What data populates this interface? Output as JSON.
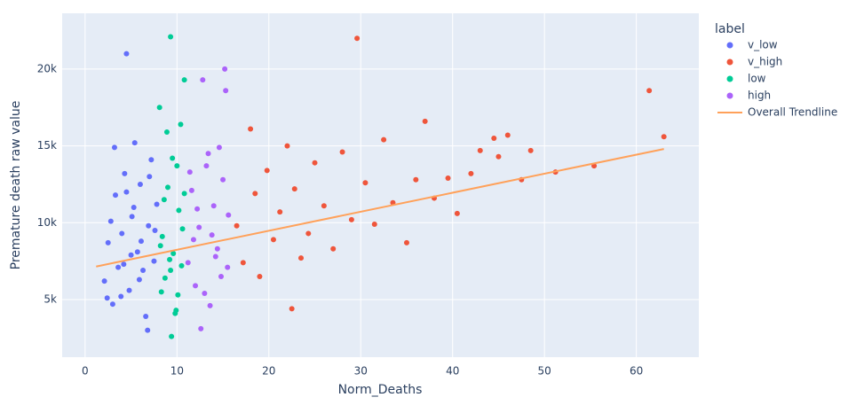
{
  "chart_data": {
    "type": "scatter",
    "x_label": "Norm_Deaths",
    "y_label": "Premature death raw value",
    "legend_title": "label",
    "legend": "right",
    "grid": true,
    "xlim": [
      -2.5,
      66.8
    ],
    "xticks": [
      0,
      10,
      20,
      30,
      40,
      50,
      60
    ],
    "ylim": [
      1250,
      23630
    ],
    "yticks": [
      {
        "value": 5000,
        "label": "5k"
      },
      {
        "value": 10000,
        "label": "10k"
      },
      {
        "value": 15000,
        "label": "15k"
      },
      {
        "value": 20000,
        "label": "20k"
      }
    ],
    "series": [
      {
        "name": "v_low",
        "color": "#636efa",
        "mode": "markers",
        "x": [
          2.1,
          2.5,
          3.0,
          3.3,
          3.6,
          4.0,
          4.3,
          4.5,
          4.8,
          5.1,
          5.4,
          5.7,
          6.0,
          6.3,
          6.6,
          6.9,
          7.2,
          7.5,
          7.8,
          2.8,
          3.9,
          5.0,
          6.1,
          7.0,
          4.5,
          3.2,
          5.9,
          6.8,
          2.4,
          7.6,
          4.2,
          5.3
        ],
        "values": [
          6200,
          8700,
          4700,
          11800,
          7100,
          9300,
          13200,
          21000,
          5600,
          10400,
          15200,
          8100,
          12500,
          6900,
          3900,
          9800,
          14100,
          7500,
          11200,
          10100,
          5200,
          7900,
          8800,
          13000,
          12000,
          14900,
          6300,
          3000,
          5100,
          9500,
          7300,
          11000
        ]
      },
      {
        "name": "v_high",
        "color": "#EF553B",
        "mode": "markers",
        "x": [
          16.5,
          17.2,
          18.0,
          18.5,
          19.0,
          19.8,
          20.5,
          21.2,
          22.0,
          22.8,
          23.5,
          24.3,
          25.0,
          26.0,
          27.0,
          28.0,
          29.0,
          29.6,
          30.5,
          31.5,
          32.5,
          33.5,
          35.0,
          36.0,
          37.0,
          38.0,
          39.5,
          40.5,
          42.0,
          43.0,
          44.5,
          45.0,
          46.0,
          47.5,
          48.5,
          51.2,
          55.4,
          61.4,
          63.0,
          22.5
        ],
        "values": [
          9800,
          7400,
          16100,
          11900,
          6500,
          13400,
          8900,
          10700,
          15000,
          12200,
          7700,
          9300,
          13900,
          11100,
          8300,
          14600,
          10200,
          22000,
          12600,
          9900,
          15400,
          11300,
          8700,
          12800,
          16600,
          11600,
          12900,
          10600,
          13200,
          14700,
          15500,
          14300,
          15700,
          12800,
          14700,
          13300,
          13700,
          18600,
          15600,
          4400
        ]
      },
      {
        "name": "low",
        "color": "#00cc96",
        "mode": "markers",
        "x": [
          8.1,
          8.4,
          8.7,
          9.0,
          9.3,
          9.6,
          9.9,
          10.2,
          10.5,
          10.8,
          8.3,
          8.9,
          9.4,
          10.0,
          10.6,
          8.6,
          9.2,
          9.8,
          10.4,
          9.3,
          10.8,
          8.2,
          9.5,
          10.1
        ],
        "values": [
          17500,
          9100,
          6400,
          12300,
          22100,
          8000,
          4300,
          10800,
          7200,
          19300,
          5500,
          15900,
          2600,
          13700,
          9600,
          11500,
          7600,
          4100,
          16400,
          6900,
          11900,
          8500,
          14200,
          5300
        ]
      },
      {
        "name": "high",
        "color": "#ab63fa",
        "mode": "markers",
        "x": [
          11.2,
          11.6,
          12.0,
          12.4,
          12.8,
          13.2,
          13.6,
          14.0,
          14.4,
          14.8,
          15.2,
          15.6,
          11.8,
          12.6,
          13.4,
          14.2,
          15.0,
          15.3,
          12.2,
          13.0,
          13.8,
          14.6,
          15.5,
          11.4
        ],
        "values": [
          7400,
          12100,
          5900,
          9700,
          19300,
          13700,
          4600,
          11100,
          8300,
          6500,
          20000,
          10500,
          8900,
          3100,
          14500,
          7800,
          12800,
          18600,
          10900,
          5400,
          9200,
          14900,
          7100,
          13300
        ]
      },
      {
        "name": "Overall Trendline",
        "color": "#FFA15A",
        "mode": "lines",
        "x": [
          1.2,
          63
        ],
        "values": [
          7150,
          14800
        ]
      }
    ]
  }
}
